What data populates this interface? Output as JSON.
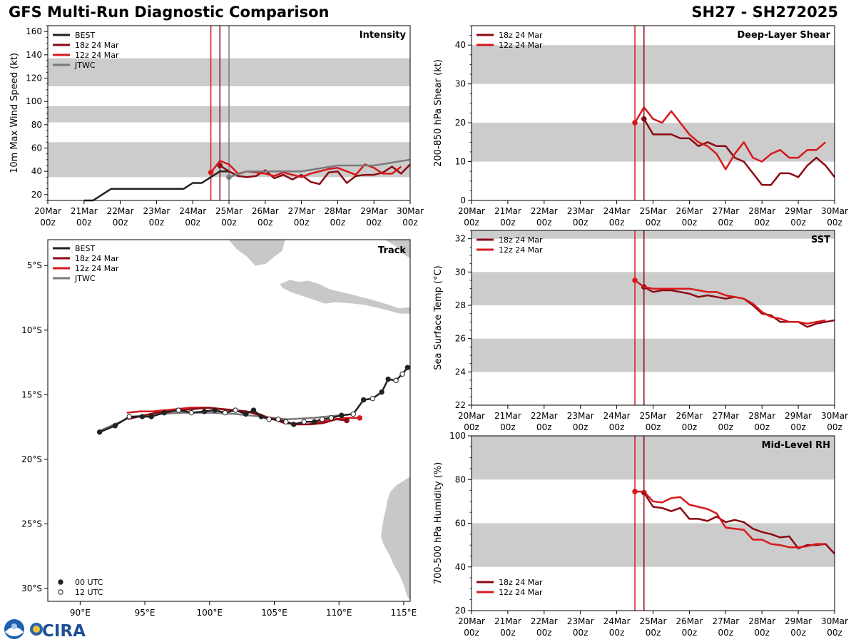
{
  "header": {
    "title": "GFS Multi-Run Diagnostic Comparison",
    "storm_id": "SH27 - SH272025",
    "logo_text": "CIRA"
  },
  "colors": {
    "best": "#222222",
    "run18z": "#8b0a14",
    "run12z": "#d7191c",
    "jtwc": "#7a7a7a",
    "band": "#cccccc",
    "land": "#c8c8c8"
  },
  "time_axis": {
    "tick_days": [
      "20Mar",
      "21Mar",
      "22Mar",
      "23Mar",
      "24Mar",
      "25Mar",
      "26Mar",
      "27Mar",
      "28Mar",
      "29Mar",
      "30Mar"
    ],
    "tick_hours": [
      "00z",
      "00z",
      "00z",
      "00z",
      "00z",
      "00z",
      "00z",
      "00z",
      "00z",
      "00z",
      "00z"
    ],
    "xlim": [
      0,
      10
    ]
  },
  "chart_data": [
    {
      "id": "intensity",
      "type": "line",
      "title": "Intensity",
      "ylabel": "10m Max Wind Speed (kt)",
      "ylim": [
        15,
        165
      ],
      "yticks": [
        20,
        40,
        60,
        80,
        100,
        120,
        140,
        160
      ],
      "bands": [
        [
          35,
          65
        ],
        [
          82,
          96
        ],
        [
          113,
          137
        ]
      ],
      "vlines": [
        {
          "x": 4.5,
          "color": "run12z"
        },
        {
          "x": 4.75,
          "color": "run18z"
        },
        {
          "x": 5.0,
          "color": "jtwc"
        }
      ],
      "legend": [
        "BEST",
        "18z 24 Mar",
        "12z 24 Mar",
        "JTWC"
      ],
      "legend_loc": "upper-left",
      "series": [
        {
          "name": "BEST",
          "color": "best",
          "x": [
            1.0,
            1.25,
            1.5,
            1.75,
            2.0,
            2.25,
            2.5,
            2.75,
            3.0,
            3.25,
            3.5,
            3.75,
            4.0,
            4.25,
            4.5,
            4.75,
            5.0
          ],
          "y": [
            15,
            15,
            20,
            25,
            25,
            25,
            25,
            25,
            25,
            25,
            25,
            25,
            30,
            30,
            35,
            40,
            40
          ]
        },
        {
          "name": "18z 24 Mar",
          "color": "run18z",
          "start_marker": true,
          "x": [
            4.75,
            5.0,
            5.25,
            5.5,
            5.75,
            6.0,
            6.25,
            6.5,
            6.75,
            7.0,
            7.25,
            7.5,
            7.75,
            8.0,
            8.25,
            8.5,
            8.75,
            9.0,
            9.25,
            9.5,
            9.75,
            10.0
          ],
          "y": [
            45,
            40,
            36,
            35,
            36,
            41,
            34,
            37,
            33,
            37,
            31,
            29,
            39,
            40,
            30,
            36,
            37,
            37,
            39,
            44,
            38,
            46
          ]
        },
        {
          "name": "12z 24 Mar",
          "color": "run12z",
          "start_marker": true,
          "x": [
            4.5,
            4.75,
            5.0,
            5.25,
            5.5,
            5.75,
            6.0,
            6.25,
            6.5,
            6.75,
            7.0,
            7.25,
            7.5,
            7.75,
            8.0,
            8.25,
            8.5,
            8.75,
            9.0,
            9.25,
            9.5,
            9.75
          ],
          "y": [
            39,
            49,
            46,
            38,
            40,
            39,
            38,
            36,
            39,
            37,
            35,
            38,
            40,
            42,
            43,
            40,
            37,
            46,
            43,
            38,
            38,
            44
          ]
        },
        {
          "name": "JTWC",
          "color": "jtwc",
          "start_marker": true,
          "x": [
            5.0,
            5.5,
            6.0,
            7.0,
            8.0,
            9.0,
            10.0
          ],
          "y": [
            35,
            40,
            40,
            40,
            45,
            45,
            50
          ]
        }
      ]
    },
    {
      "id": "shear",
      "type": "line",
      "title": "Deep-Layer Shear",
      "ylabel": "200-850 hPa Shear (kt)",
      "ylim": [
        0,
        45
      ],
      "yticks": [
        0,
        10,
        20,
        30,
        40
      ],
      "bands": [
        [
          10,
          20
        ],
        [
          30,
          40
        ]
      ],
      "vlines": [
        {
          "x": 4.5,
          "color": "run12z"
        },
        {
          "x": 4.75,
          "color": "run18z"
        }
      ],
      "legend": [
        "18z 24 Mar",
        "12z 24 Mar"
      ],
      "legend_loc": "upper-left",
      "series": [
        {
          "name": "18z 24 Mar",
          "color": "run18z",
          "start_marker": true,
          "x": [
            4.75,
            5.0,
            5.25,
            5.5,
            5.75,
            6.0,
            6.25,
            6.5,
            6.75,
            7.0,
            7.25,
            7.5,
            7.75,
            8.0,
            8.25,
            8.5,
            8.75,
            9.0,
            9.25,
            9.5,
            9.75,
            10.0
          ],
          "y": [
            21,
            17,
            17,
            17,
            16,
            16,
            14,
            15,
            14,
            14,
            11,
            10,
            7,
            4,
            4,
            7,
            7,
            6,
            9,
            11,
            9,
            6
          ]
        },
        {
          "name": "12z 24 Mar",
          "color": "run12z",
          "start_marker": true,
          "x": [
            4.5,
            4.75,
            5.0,
            5.25,
            5.5,
            5.75,
            6.0,
            6.25,
            6.5,
            6.75,
            7.0,
            7.25,
            7.5,
            7.75,
            8.0,
            8.25,
            8.5,
            8.75,
            9.0,
            9.25,
            9.5,
            9.75
          ],
          "y": [
            20,
            24,
            21,
            20,
            23,
            20,
            17,
            15,
            14,
            12,
            8,
            12,
            15,
            11,
            10,
            12,
            13,
            11,
            11,
            13,
            13,
            15
          ]
        }
      ]
    },
    {
      "id": "sst",
      "type": "line",
      "title": "SST",
      "ylabel": "Sea Surface Temp (°C)",
      "ylim": [
        22,
        32.5
      ],
      "yticks": [
        22,
        24,
        26,
        28,
        30,
        32
      ],
      "bands": [
        [
          24,
          26
        ],
        [
          28,
          30
        ],
        [
          32,
          32.5
        ]
      ],
      "vlines": [
        {
          "x": 4.5,
          "color": "run12z"
        },
        {
          "x": 4.75,
          "color": "run18z"
        }
      ],
      "legend": [
        "18z 24 Mar",
        "12z 24 Mar"
      ],
      "legend_loc": "upper-left",
      "series": [
        {
          "name": "18z 24 Mar",
          "color": "run18z",
          "start_marker": true,
          "x": [
            4.75,
            5.0,
            5.25,
            5.5,
            5.75,
            6.0,
            6.25,
            6.5,
            6.75,
            7.0,
            7.25,
            7.5,
            7.75,
            8.0,
            8.25,
            8.5,
            8.75,
            9.0,
            9.25,
            9.5,
            9.75,
            10.0
          ],
          "y": [
            29.1,
            28.8,
            28.9,
            28.9,
            28.8,
            28.7,
            28.5,
            28.6,
            28.5,
            28.4,
            28.5,
            28.4,
            28.0,
            27.5,
            27.4,
            27.0,
            27.0,
            27.0,
            26.7,
            26.9,
            27.0,
            27.1
          ]
        },
        {
          "name": "12z 24 Mar",
          "color": "run12z",
          "start_marker": true,
          "x": [
            4.5,
            4.75,
            5.0,
            5.25,
            5.5,
            5.75,
            6.0,
            6.25,
            6.5,
            6.75,
            7.0,
            7.25,
            7.5,
            7.75,
            8.0,
            8.25,
            8.5,
            8.75,
            9.0,
            9.25,
            9.5,
            9.75
          ],
          "y": [
            29.5,
            29.1,
            29.0,
            29.0,
            29.0,
            29.0,
            29.0,
            28.9,
            28.8,
            28.8,
            28.6,
            28.5,
            28.4,
            28.1,
            27.6,
            27.3,
            27.2,
            27.0,
            27.0,
            26.9,
            27.0,
            27.1
          ]
        }
      ]
    },
    {
      "id": "rh",
      "type": "line",
      "title": "Mid-Level RH",
      "ylabel": "700-500 hPa Humidity (%)",
      "ylim": [
        20,
        100
      ],
      "yticks": [
        20,
        40,
        60,
        80,
        100
      ],
      "bands": [
        [
          40,
          60
        ],
        [
          80,
          100
        ]
      ],
      "vlines": [
        {
          "x": 4.5,
          "color": "run12z"
        },
        {
          "x": 4.75,
          "color": "run18z"
        }
      ],
      "legend": [
        "18z 24 Mar",
        "12z 24 Mar"
      ],
      "legend_loc": "lower-left",
      "series": [
        {
          "name": "18z 24 Mar",
          "color": "run18z",
          "start_marker": true,
          "x": [
            4.75,
            5.0,
            5.25,
            5.5,
            5.75,
            6.0,
            6.25,
            6.5,
            6.75,
            7.0,
            7.25,
            7.5,
            7.75,
            8.0,
            8.25,
            8.5,
            8.75,
            9.0,
            9.25,
            9.5,
            9.75,
            10.0
          ],
          "y": [
            74,
            67.5,
            67,
            65.5,
            67,
            62,
            62,
            61,
            63,
            60.5,
            61.5,
            60.5,
            57.5,
            56,
            55,
            53.5,
            54,
            48.5,
            50,
            50,
            50.5,
            46
          ]
        },
        {
          "name": "12z 24 Mar",
          "color": "run12z",
          "start_marker": true,
          "x": [
            4.5,
            4.75,
            5.0,
            5.25,
            5.5,
            5.75,
            6.0,
            6.25,
            6.5,
            6.75,
            7.0,
            7.25,
            7.5,
            7.75,
            8.0,
            8.25,
            8.5,
            8.75,
            9.0,
            9.25,
            9.5,
            9.75
          ],
          "y": [
            74.5,
            74.5,
            70,
            69.5,
            71.5,
            72,
            68.5,
            67.5,
            66.5,
            64.5,
            58,
            57.5,
            57,
            52.5,
            52.5,
            50.5,
            50,
            49,
            49,
            49.5,
            50.5,
            50.5
          ]
        }
      ]
    },
    {
      "id": "track",
      "type": "scatter",
      "title": "Track",
      "xlim": [
        87.5,
        115.5
      ],
      "ylim": [
        -31,
        -3
      ],
      "xticks": [
        90,
        95,
        100,
        105,
        110,
        115
      ],
      "xtick_labels": [
        "90°E",
        "95°E",
        "100°E",
        "105°E",
        "110°E",
        "115°E"
      ],
      "yticks": [
        -5,
        -10,
        -15,
        -20,
        -25,
        -30
      ],
      "ytick_labels": [
        "5°S",
        "10°S",
        "15°S",
        "20°S",
        "25°S",
        "30°S"
      ],
      "legend": [
        "BEST",
        "18z 24 Mar",
        "12z 24 Mar",
        "JTWC"
      ],
      "legend_loc": "upper-left",
      "marker_legend": [
        "00 UTC",
        "12 UTC"
      ],
      "series": [
        {
          "name": "BEST",
          "color": "best",
          "lon": [
            115.3,
            114.9,
            114.4,
            113.8,
            113.3,
            112.6,
            111.9,
            111.1,
            110.2,
            109.4,
            108.7,
            108.1,
            107.3,
            106.5,
            105.9,
            105.3,
            104.6,
            104.0,
            103.4,
            102.8,
            102.0,
            101.2,
            100.4,
            99.6,
            98.6,
            97.6,
            96.5,
            95.5,
            94.8,
            93.8,
            92.7,
            91.5
          ],
          "lat": [
            -12.9,
            -13.4,
            -13.9,
            -13.8,
            -14.8,
            -15.3,
            -15.4,
            -16.5,
            -16.6,
            -16.8,
            -16.9,
            -17.1,
            -17.1,
            -17.3,
            -17.1,
            -16.9,
            -16.9,
            -16.7,
            -16.2,
            -16.5,
            -16.2,
            -16.4,
            -16.2,
            -16.3,
            -16.4,
            -16.2,
            -16.4,
            -16.7,
            -16.7,
            -16.7,
            -17.4,
            -17.9
          ],
          "hour": [
            0,
            12,
            12,
            0,
            0,
            12,
            0,
            12,
            0,
            12,
            12,
            0,
            12,
            0,
            12,
            12,
            12,
            0,
            0,
            0,
            12,
            12,
            0,
            0,
            12,
            12,
            0,
            0,
            0,
            12,
            0,
            0
          ]
        },
        {
          "name": "18z 24 Mar",
          "color": "run18z",
          "lon": [
            110.6,
            109.8,
            108.8,
            107.8,
            106.8,
            105.8,
            104.9,
            103.9,
            102.9,
            101.9,
            100.9,
            99.9,
            98.9,
            97.9,
            96.9,
            95.9,
            94.9,
            93.7
          ],
          "lat": [
            -17.0,
            -16.9,
            -17.2,
            -17.3,
            -17.3,
            -17.2,
            -16.9,
            -16.6,
            -16.3,
            -16.2,
            -16.1,
            -16.0,
            -16.1,
            -16.2,
            -16.3,
            -16.4,
            -16.6,
            -16.9
          ]
        },
        {
          "name": "12z 24 Mar",
          "color": "run12z",
          "lon": [
            111.6,
            110.6,
            109.6,
            108.6,
            107.6,
            106.6,
            105.6,
            104.6,
            103.6,
            102.6,
            101.6,
            100.6,
            99.6,
            98.6,
            97.6,
            96.6,
            95.6,
            94.6,
            93.6
          ],
          "lat": [
            -16.8,
            -16.8,
            -16.9,
            -17.1,
            -17.3,
            -17.3,
            -17.0,
            -16.8,
            -16.4,
            -16.3,
            -16.2,
            -16.1,
            -16.0,
            -16.0,
            -16.1,
            -16.2,
            -16.3,
            -16.3,
            -16.4
          ]
        },
        {
          "name": "JTWC",
          "color": "jtwc",
          "lon": [
            110.0,
            108.0,
            106.0,
            104.0,
            102.0,
            100.0,
            98.0,
            96.0,
            94.0,
            91.5
          ],
          "lat": [
            -16.6,
            -16.8,
            -16.9,
            -16.7,
            -16.5,
            -16.4,
            -16.4,
            -16.5,
            -16.7,
            -17.8
          ]
        }
      ]
    }
  ]
}
